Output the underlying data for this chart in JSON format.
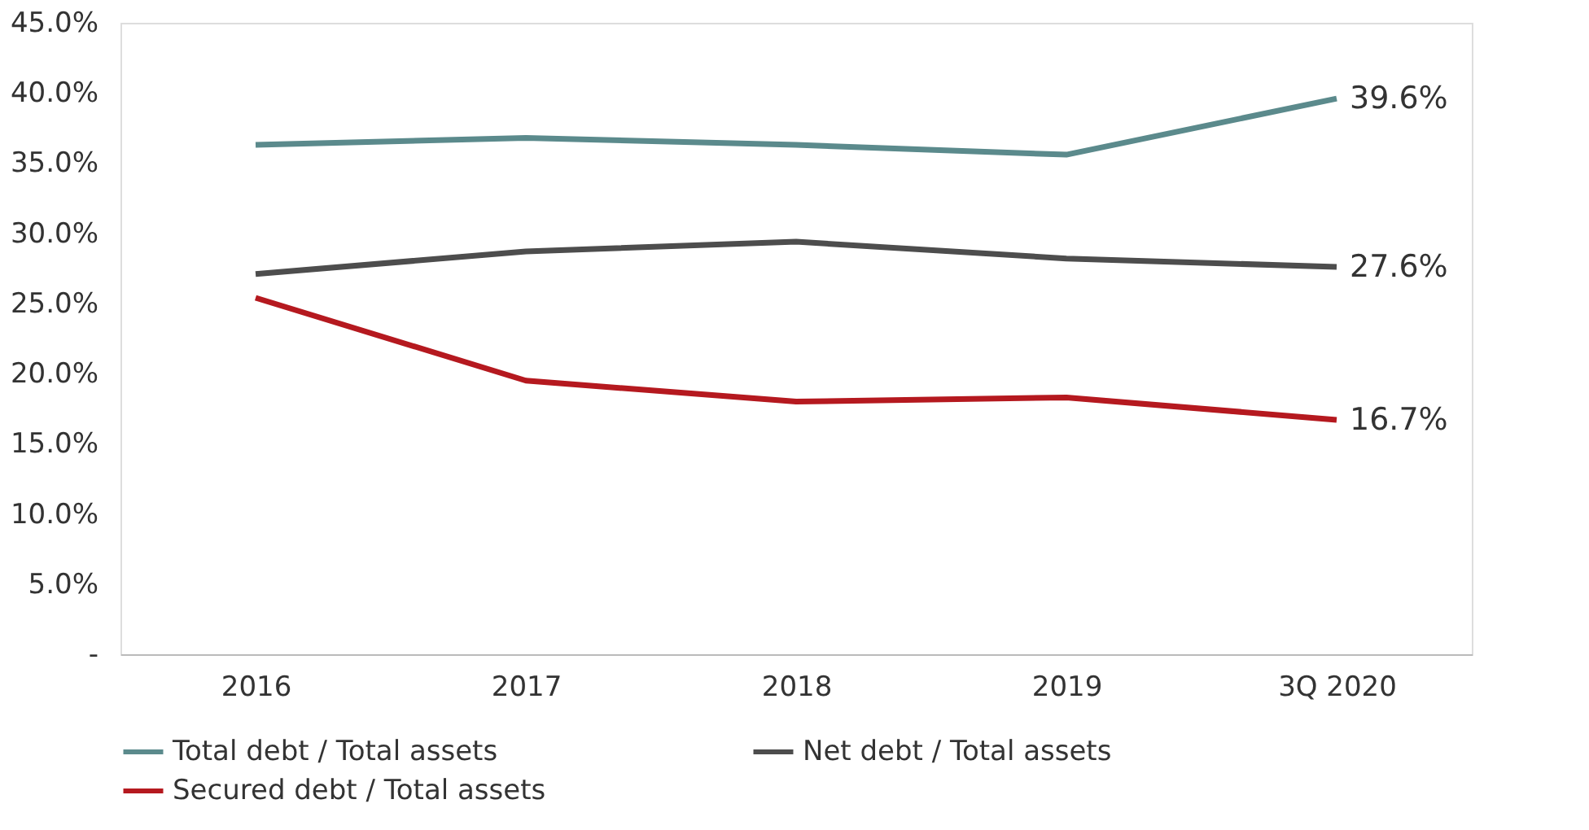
{
  "chart_data": {
    "type": "line",
    "categories": [
      "2016",
      "2017",
      "2018",
      "2019",
      "3Q 2020"
    ],
    "series": [
      {
        "name": "Total debt / Total assets",
        "color": "#5b8a8c",
        "values": [
          36.3,
          36.8,
          36.3,
          35.6,
          39.6
        ],
        "value_labels": [
          null,
          null,
          null,
          null,
          "39.6%"
        ]
      },
      {
        "name": "Net debt / Total assets",
        "color": "#4d4d4d",
        "values": [
          27.1,
          28.7,
          29.4,
          28.2,
          27.6
        ],
        "value_labels": [
          null,
          null,
          null,
          null,
          "27.6%"
        ]
      },
      {
        "name": "Secured debt / Total assets",
        "color": "#b5191f",
        "values": [
          25.4,
          19.5,
          18.0,
          18.3,
          16.7
        ],
        "value_labels": [
          null,
          null,
          null,
          null,
          "16.7%"
        ]
      }
    ],
    "ylim": [
      0,
      45
    ],
    "yticks": [
      {
        "value": 0,
        "label": "-"
      },
      {
        "value": 5,
        "label": "5.0%"
      },
      {
        "value": 10,
        "label": "10.0%"
      },
      {
        "value": 15,
        "label": "15.0%"
      },
      {
        "value": 20,
        "label": "20.0%"
      },
      {
        "value": 25,
        "label": "25.0%"
      },
      {
        "value": 30,
        "label": "30.0%"
      },
      {
        "value": 35,
        "label": "35.0%"
      },
      {
        "value": 40,
        "label": "40.0%"
      },
      {
        "value": 45,
        "label": "45.0%"
      }
    ],
    "grid": false,
    "legend": "bottom",
    "marker": "none",
    "line_style": "solid"
  }
}
